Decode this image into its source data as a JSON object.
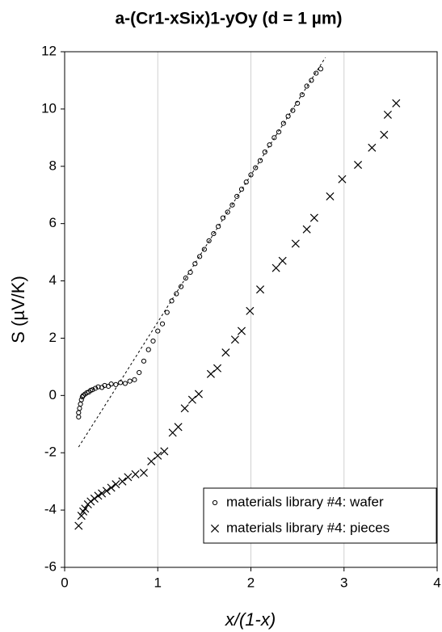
{
  "chart_data": {
    "type": "scatter",
    "title": "a-(Cr1-xSix)1-yOy (d = 1 µm)",
    "xlabel": "x/(1-x)",
    "ylabel": "S (µV/K)",
    "xlim": [
      0,
      4
    ],
    "ylim": [
      -6,
      12
    ],
    "xticks": [
      0,
      1,
      2,
      3,
      4
    ],
    "yticks": [
      -6,
      -4,
      -2,
      0,
      2,
      4,
      6,
      8,
      10,
      12
    ],
    "grid": "x",
    "legend": "lower right",
    "series": [
      {
        "name": "materials library #4: wafer",
        "marker": "circle",
        "color": "#000000",
        "x": [
          0.15,
          0.15,
          0.16,
          0.17,
          0.18,
          0.19,
          0.2,
          0.22,
          0.24,
          0.26,
          0.28,
          0.3,
          0.33,
          0.36,
          0.4,
          0.43,
          0.47,
          0.5,
          0.55,
          0.6,
          0.65,
          0.7,
          0.75,
          0.8,
          0.85,
          0.9,
          0.95,
          1.0,
          1.05,
          1.1,
          1.15,
          1.2,
          1.25,
          1.3,
          1.35,
          1.4,
          1.45,
          1.5,
          1.55,
          1.6,
          1.65,
          1.7,
          1.75,
          1.8,
          1.85,
          1.9,
          1.95,
          2.0,
          2.05,
          2.1,
          2.15,
          2.2,
          2.25,
          2.3,
          2.35,
          2.4,
          2.45,
          2.5,
          2.55,
          2.6,
          2.65,
          2.7,
          2.75
        ],
        "values": [
          -0.6,
          -0.75,
          -0.45,
          -0.3,
          -0.15,
          -0.05,
          0.0,
          0.05,
          0.1,
          0.12,
          0.18,
          0.2,
          0.25,
          0.3,
          0.28,
          0.35,
          0.32,
          0.4,
          0.38,
          0.45,
          0.42,
          0.5,
          0.55,
          0.8,
          1.2,
          1.6,
          1.9,
          2.25,
          2.5,
          2.9,
          3.3,
          3.55,
          3.8,
          4.1,
          4.3,
          4.6,
          4.85,
          5.1,
          5.4,
          5.65,
          5.9,
          6.2,
          6.4,
          6.65,
          6.95,
          7.2,
          7.45,
          7.7,
          7.95,
          8.2,
          8.5,
          8.75,
          9.0,
          9.2,
          9.5,
          9.75,
          9.95,
          10.2,
          10.5,
          10.8,
          11.0,
          11.25,
          11.4
        ]
      },
      {
        "name": "materials library #4: pieces",
        "marker": "cross",
        "color": "#000000",
        "x": [
          0.15,
          0.18,
          0.2,
          0.22,
          0.25,
          0.28,
          0.32,
          0.36,
          0.4,
          0.45,
          0.5,
          0.55,
          0.62,
          0.68,
          0.76,
          0.85,
          0.93,
          1.0,
          1.07,
          1.16,
          1.22,
          1.29,
          1.37,
          1.44,
          1.57,
          1.64,
          1.73,
          1.83,
          1.9,
          1.99,
          2.1,
          2.27,
          2.34,
          2.48,
          2.6,
          2.68,
          2.85,
          2.98,
          3.15,
          3.3,
          3.43,
          3.47,
          3.56
        ],
        "values": [
          -4.55,
          -4.2,
          -4.05,
          -3.95,
          -3.8,
          -3.7,
          -3.6,
          -3.5,
          -3.42,
          -3.33,
          -3.22,
          -3.1,
          -3.0,
          -2.85,
          -2.75,
          -2.7,
          -2.3,
          -2.1,
          -1.95,
          -1.3,
          -1.1,
          -0.45,
          -0.15,
          0.05,
          0.75,
          0.95,
          1.5,
          1.95,
          2.25,
          2.95,
          3.7,
          4.45,
          4.7,
          5.3,
          5.8,
          6.2,
          6.95,
          7.55,
          8.05,
          8.65,
          9.1,
          9.8,
          10.2
        ]
      }
    ],
    "trendline": {
      "x": [
        0.15,
        2.8
      ],
      "values": [
        -1.8,
        11.8
      ],
      "style": "dashed",
      "color": "#000000"
    }
  }
}
